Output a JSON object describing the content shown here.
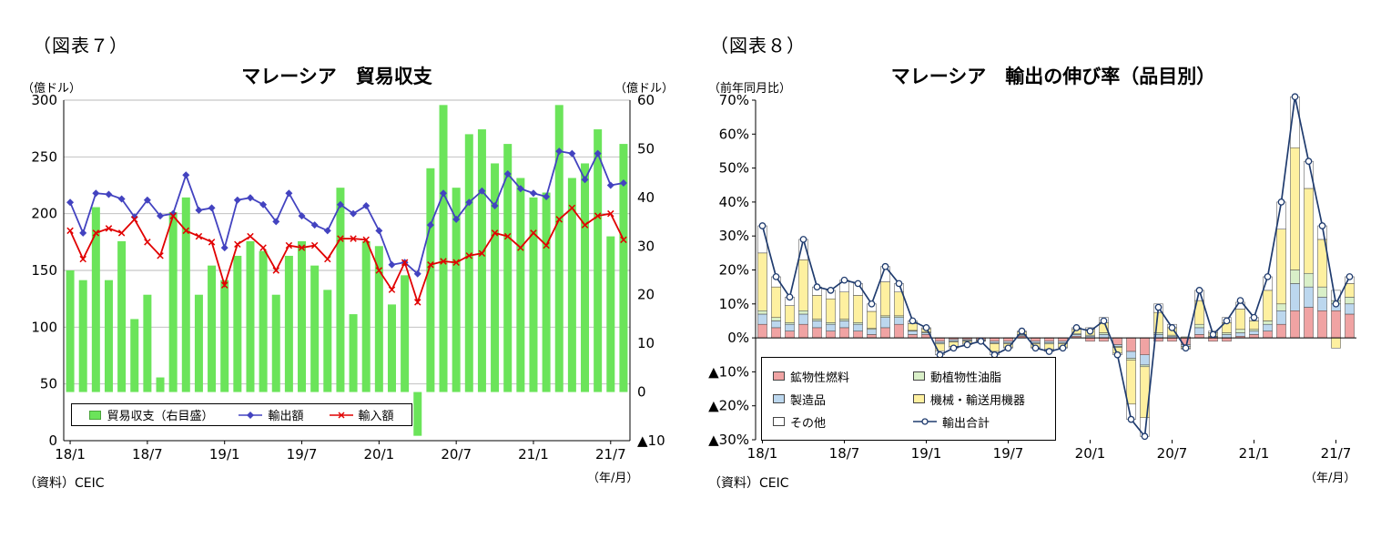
{
  "figure7": {
    "tag": "（図表７）",
    "title": "マレーシア　貿易収支",
    "left_axis_unit": "（億ドル）",
    "right_axis_unit": "（億ドル）",
    "source": "（資料）CEIC",
    "axis_note": "（年/月）",
    "chart_data": {
      "type": "bar+line",
      "x": [
        "18/1",
        "18/2",
        "18/3",
        "18/4",
        "18/5",
        "18/6",
        "18/7",
        "18/8",
        "18/9",
        "18/10",
        "18/11",
        "18/12",
        "19/1",
        "19/2",
        "19/3",
        "19/4",
        "19/5",
        "19/6",
        "19/7",
        "19/8",
        "19/9",
        "19/10",
        "19/11",
        "19/12",
        "20/1",
        "20/2",
        "20/3",
        "20/4",
        "20/5",
        "20/6",
        "20/7",
        "20/8",
        "20/9",
        "20/10",
        "20/11",
        "20/12",
        "21/1",
        "21/2",
        "21/3",
        "21/4",
        "21/5",
        "21/6",
        "21/7",
        "21/8"
      ],
      "x_tick_every": 6,
      "x_tick_labels": [
        "18/1",
        "18/7",
        "19/1",
        "19/7",
        "20/1",
        "20/7",
        "21/1",
        "21/7"
      ],
      "left_axis": {
        "min": 0,
        "max": 300,
        "step": 50
      },
      "right_axis": {
        "min": -10,
        "max": 60,
        "step": 10,
        "negative_prefix": "▲"
      },
      "grid": true,
      "bar_series": {
        "name": "貿易収支（右目盛）",
        "axis": "right",
        "color": "#6BE45A",
        "values": [
          25,
          23,
          38,
          23,
          31,
          15,
          20,
          3,
          37,
          40,
          20,
          26,
          23,
          28,
          31,
          29,
          20,
          28,
          31,
          26,
          21,
          42,
          16,
          31,
          30,
          18,
          24,
          -9,
          46,
          59,
          42,
          53,
          54,
          47,
          51,
          44,
          40,
          41,
          59,
          44,
          47,
          54,
          32,
          51
        ]
      },
      "line_series": [
        {
          "name": "輸出額",
          "axis": "left",
          "color": "#4343C0",
          "marker": "diamond",
          "values": [
            210,
            183,
            218,
            217,
            213,
            197,
            212,
            198,
            200,
            234,
            203,
            205,
            170,
            212,
            214,
            208,
            193,
            218,
            198,
            190,
            185,
            208,
            200,
            207,
            185,
            155,
            157,
            147,
            190,
            218,
            195,
            210,
            220,
            207,
            235,
            222,
            218,
            215,
            255,
            253,
            230,
            253,
            225,
            227
          ]
        },
        {
          "name": "輸入額",
          "axis": "left",
          "color": "#E10000",
          "marker": "x",
          "values": [
            185,
            160,
            183,
            187,
            183,
            195,
            175,
            163,
            198,
            185,
            180,
            175,
            137,
            173,
            180,
            170,
            150,
            172,
            170,
            172,
            160,
            178,
            178,
            177,
            150,
            133,
            157,
            122,
            155,
            158,
            157,
            163,
            165,
            183,
            180,
            170,
            183,
            172,
            195,
            205,
            190,
            198,
            200,
            177
          ]
        }
      ]
    }
  },
  "figure8": {
    "tag": "（図表８）",
    "title": "マレーシア　輸出の伸び率（品目別）",
    "y_axis_unit": "（前年同月比）",
    "source": "（資料）CEIC",
    "axis_note": "（年/月）",
    "chart_data": {
      "type": "stacked-bar+line",
      "x": [
        "18/1",
        "18/2",
        "18/3",
        "18/4",
        "18/5",
        "18/6",
        "18/7",
        "18/8",
        "18/9",
        "18/10",
        "18/11",
        "18/12",
        "19/1",
        "19/2",
        "19/3",
        "19/4",
        "19/5",
        "19/6",
        "19/7",
        "19/8",
        "19/9",
        "19/10",
        "19/11",
        "19/12",
        "20/1",
        "20/2",
        "20/3",
        "20/4",
        "20/5",
        "20/6",
        "20/7",
        "20/8",
        "20/9",
        "20/10",
        "20/11",
        "20/12",
        "21/1",
        "21/2",
        "21/3",
        "21/4",
        "21/5",
        "21/6",
        "21/7",
        "21/8"
      ],
      "x_tick_every": 6,
      "x_tick_labels": [
        "18/1",
        "18/7",
        "19/1",
        "19/7",
        "20/1",
        "20/7",
        "21/1",
        "21/7"
      ],
      "y_axis": {
        "min": -30,
        "max": 70,
        "step": 10,
        "unit": "%",
        "negative_prefix": "▲"
      },
      "grid": false,
      "stack_series": [
        {
          "name": "鉱物性燃料",
          "color": "#F0A3A3",
          "values": [
            4,
            3,
            2,
            4,
            3,
            2,
            3,
            2,
            1,
            3,
            4,
            1,
            1,
            -1,
            -0.5,
            -0.5,
            -0.5,
            -1,
            -1,
            0.5,
            -1,
            -1,
            -1,
            0.5,
            -1,
            -1,
            -2,
            -4,
            -5,
            -1,
            -1,
            -2,
            1,
            -1,
            -1,
            0.5,
            1,
            2,
            4,
            8,
            9,
            8,
            8,
            7
          ]
        },
        {
          "name": "製造品",
          "color": "#BCD7EE",
          "values": [
            3,
            2,
            2,
            3,
            2,
            2,
            2,
            2,
            1.5,
            3,
            2,
            1,
            0.5,
            -0.5,
            -0.5,
            -0.3,
            -0.2,
            -0.5,
            -0.5,
            0.3,
            -0.5,
            -0.5,
            -0.5,
            0.5,
            0.5,
            1,
            -0.5,
            -2,
            -3,
            1,
            0.5,
            -0.5,
            2,
            0.3,
            1,
            1,
            1,
            2,
            4,
            8,
            6,
            4,
            2,
            3
          ]
        },
        {
          "name": "動植物性油脂",
          "color": "#D9EFC8",
          "values": [
            1,
            1,
            0.5,
            1,
            0.5,
            0.5,
            0.5,
            0.5,
            0.3,
            0.5,
            0.5,
            0.2,
            0.2,
            -0.3,
            -0.2,
            -0.2,
            -0.1,
            -0.2,
            -0.2,
            0.2,
            -0.2,
            -0.3,
            -0.2,
            0.3,
            0.3,
            0.5,
            -0.3,
            -0.5,
            -0.5,
            0.5,
            0.3,
            0.3,
            1,
            0.2,
            0.5,
            1,
            0.5,
            1,
            2,
            4,
            4,
            3,
            1,
            2
          ]
        },
        {
          "name": "機械・輸送用機器",
          "color": "#FEF0A0",
          "values": [
            17,
            9,
            5,
            15,
            7,
            7,
            8,
            8,
            5,
            10,
            7,
            2,
            1,
            -2,
            -1.3,
            -0.6,
            -0.2,
            -2.3,
            -1,
            0.7,
            -1,
            -1.5,
            -1,
            1.2,
            1.7,
            3,
            -1.7,
            -13,
            -15,
            6,
            2.2,
            -0.5,
            7,
            1,
            3,
            6,
            2.5,
            9,
            22,
            36,
            25,
            14,
            -3,
            4
          ]
        },
        {
          "name": "その他",
          "color": "#FFFFFF",
          "values": [
            8,
            3,
            2.5,
            6,
            2.5,
            2.5,
            3.5,
            3.5,
            2.2,
            4.5,
            2.5,
            0.8,
            0.3,
            -1.2,
            -0.5,
            -0.4,
            0,
            -1,
            -0.3,
            0.3,
            -0.3,
            -0.7,
            -0.3,
            0.5,
            0.5,
            1.5,
            -0.5,
            -4.5,
            -5.5,
            2.5,
            1,
            -0.3,
            3,
            0.5,
            1.5,
            2,
            1,
            4,
            8,
            15,
            8,
            4,
            3,
            2
          ]
        }
      ],
      "line_series": {
        "name": "輸出合計",
        "color": "#1F3B6E",
        "marker": "circle",
        "values": [
          33,
          18,
          12,
          29,
          15,
          14,
          17,
          16,
          10,
          21,
          16,
          5,
          3,
          -5,
          -3,
          -2,
          -1,
          -5,
          -3,
          2,
          -3,
          -4,
          -3,
          3,
          2,
          5,
          -5,
          -24,
          -29,
          9,
          3,
          -3,
          14,
          1,
          5,
          11,
          6,
          18,
          40,
          71,
          52,
          33,
          10,
          18
        ]
      }
    }
  }
}
